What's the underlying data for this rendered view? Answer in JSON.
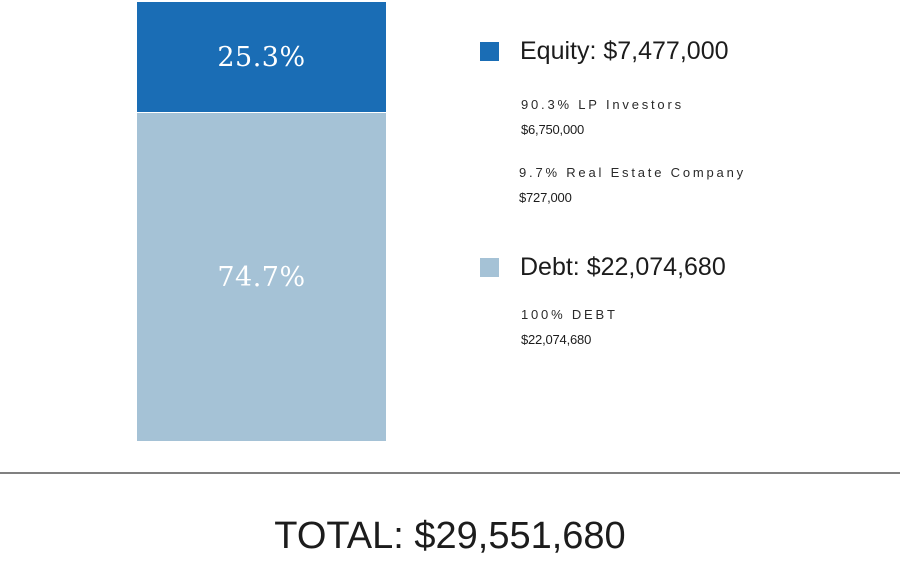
{
  "chart_data": {
    "type": "bar",
    "stacked": true,
    "categories": [
      ""
    ],
    "series": [
      {
        "name": "Equity",
        "values": [
          25.3
        ],
        "amount": "$7,477,000",
        "color": "#1a6db5"
      },
      {
        "name": "Debt",
        "values": [
          74.7
        ],
        "amount": "$22,074,680",
        "color": "#a5c2d6"
      }
    ],
    "segment_labels": [
      "25.3%",
      "74.7%"
    ],
    "ylim": [
      0,
      100
    ]
  },
  "legend": {
    "equity": {
      "title": "Equity: $7,477,000",
      "color": "#1a6db5",
      "items": [
        {
          "label": "90.3% LP Investors",
          "value": "$6,750,000"
        },
        {
          "label": "9.7% Real Estate Company",
          "value": "$727,000"
        }
      ]
    },
    "debt": {
      "title": "Debt: $22,074,680",
      "color": "#a5c2d6",
      "items": [
        {
          "label": "100% DEBT",
          "value": "$22,074,680"
        }
      ]
    }
  },
  "total": "TOTAL: $29,551,680"
}
